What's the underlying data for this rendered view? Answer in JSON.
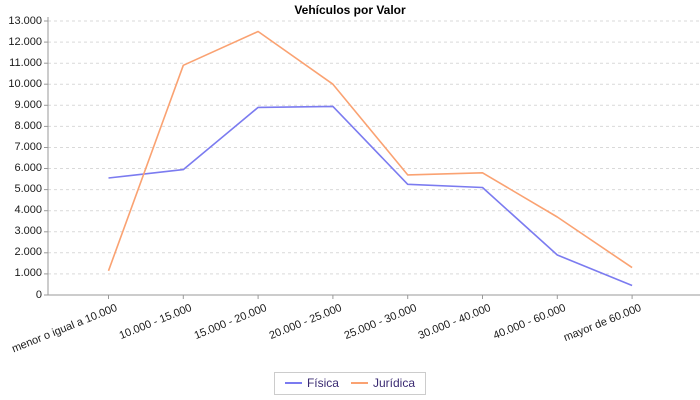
{
  "chart_data": {
    "type": "line",
    "title": "Vehículos por Valor",
    "categories": [
      "menor o igual a 10.000",
      "10.000 - 15.000",
      "15.000 - 20.000",
      "20.000 - 25.000",
      "25.000 - 30.000",
      "30.000 - 40.000",
      "40.000 - 60.000",
      "mayor de 60.000"
    ],
    "series": [
      {
        "name": "Física",
        "color": "#7b7bf0",
        "values": [
          5550,
          5950,
          8900,
          8950,
          5250,
          5100,
          1900,
          450
        ]
      },
      {
        "name": "Jurídica",
        "color": "#faa272",
        "values": [
          1150,
          10900,
          12500,
          10000,
          5700,
          5800,
          3700,
          1300
        ]
      }
    ],
    "xlabel": "",
    "ylabel": "",
    "ylim": [
      0,
      13000
    ],
    "ytick_step": 1000,
    "ytick_labels": [
      "0",
      "1.000",
      "2.000",
      "3.000",
      "4.000",
      "5.000",
      "6.000",
      "7.000",
      "8.000",
      "9.000",
      "10.000",
      "11.000",
      "12.000",
      "13.000"
    ],
    "grid": "horizontal-dashed",
    "legend_position": "bottom-center"
  },
  "colors": {
    "background": "#ffffff",
    "axis": "#999999",
    "gridline": "#d9d9d9",
    "tick_label": "#1a1a1a",
    "title_text": "#000000",
    "legend_text": "#3a2a72",
    "legend_border": "#cccccc"
  }
}
